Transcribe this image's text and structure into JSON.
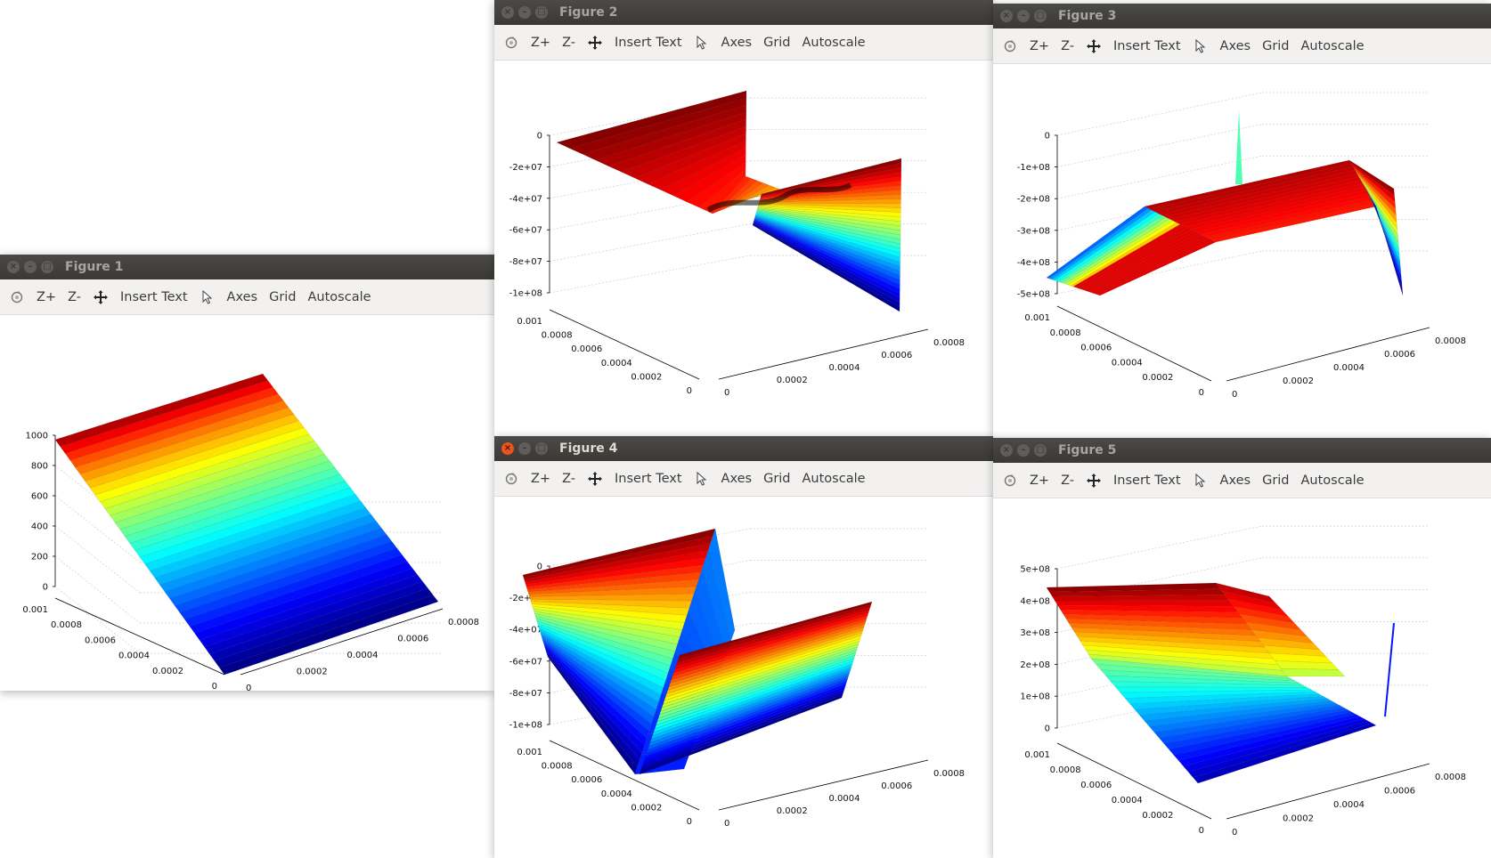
{
  "toolbar": {
    "zoom_in": "Z+",
    "zoom_out": "Z-",
    "insert_text": "Insert Text",
    "axes": "Axes",
    "grid": "Grid",
    "autoscale": "Autoscale"
  },
  "colors": {
    "titlebar": "#3c3b37",
    "title_inactive": "#a6a5a1",
    "title_active": "#dfdbd2",
    "close_active": "#e95420",
    "toolbar_bg": "#f2f1f0",
    "colormap": "jet"
  },
  "windows": [
    {
      "title": "Figure 1",
      "active": false,
      "z_ticks": [
        "1000",
        "800",
        "600",
        "400",
        "200",
        "0"
      ],
      "left_ticks": [
        "0.001",
        "0.0008",
        "0.0006",
        "0.0004",
        "0.0002",
        "0"
      ],
      "right_ticks": [
        "0",
        "0.0002",
        "0.0004",
        "0.0006",
        "0.0008"
      ]
    },
    {
      "title": "Figure 2",
      "active": false,
      "z_ticks": [
        "0",
        "-2e+07",
        "-4e+07",
        "-6e+07",
        "-8e+07",
        "-1e+08"
      ],
      "left_ticks": [
        "0.001",
        "0.0008",
        "0.0006",
        "0.0004",
        "0.0002",
        "0"
      ],
      "right_ticks": [
        "0",
        "0.0002",
        "0.0004",
        "0.0006",
        "0.0008"
      ]
    },
    {
      "title": "Figure 3",
      "active": false,
      "z_ticks": [
        "0",
        "-1e+08",
        "-2e+08",
        "-3e+08",
        "-4e+08",
        "-5e+08"
      ],
      "left_ticks": [
        "0.001",
        "0.0008",
        "0.0006",
        "0.0004",
        "0.0002",
        "0"
      ],
      "right_ticks": [
        "0",
        "0.0002",
        "0.0004",
        "0.0006",
        "0.0008"
      ]
    },
    {
      "title": "Figure 4",
      "active": true,
      "z_ticks": [
        "0",
        "-2e+07",
        "-4e+07",
        "-6e+07",
        "-8e+07",
        "-1e+08"
      ],
      "left_ticks": [
        "0.001",
        "0.0008",
        "0.0006",
        "0.0004",
        "0.0002",
        "0"
      ],
      "right_ticks": [
        "0",
        "0.0002",
        "0.0004",
        "0.0006",
        "0.0008"
      ]
    },
    {
      "title": "Figure 5",
      "active": false,
      "z_ticks": [
        "5e+08",
        "4e+08",
        "3e+08",
        "2e+08",
        "1e+08",
        "0"
      ],
      "left_ticks": [
        "0.001",
        "0.0008",
        "0.0006",
        "0.0004",
        "0.0002",
        "0"
      ],
      "right_ticks": [
        "0",
        "0.0002",
        "0.0004",
        "0.0006",
        "0.0008"
      ]
    }
  ]
}
